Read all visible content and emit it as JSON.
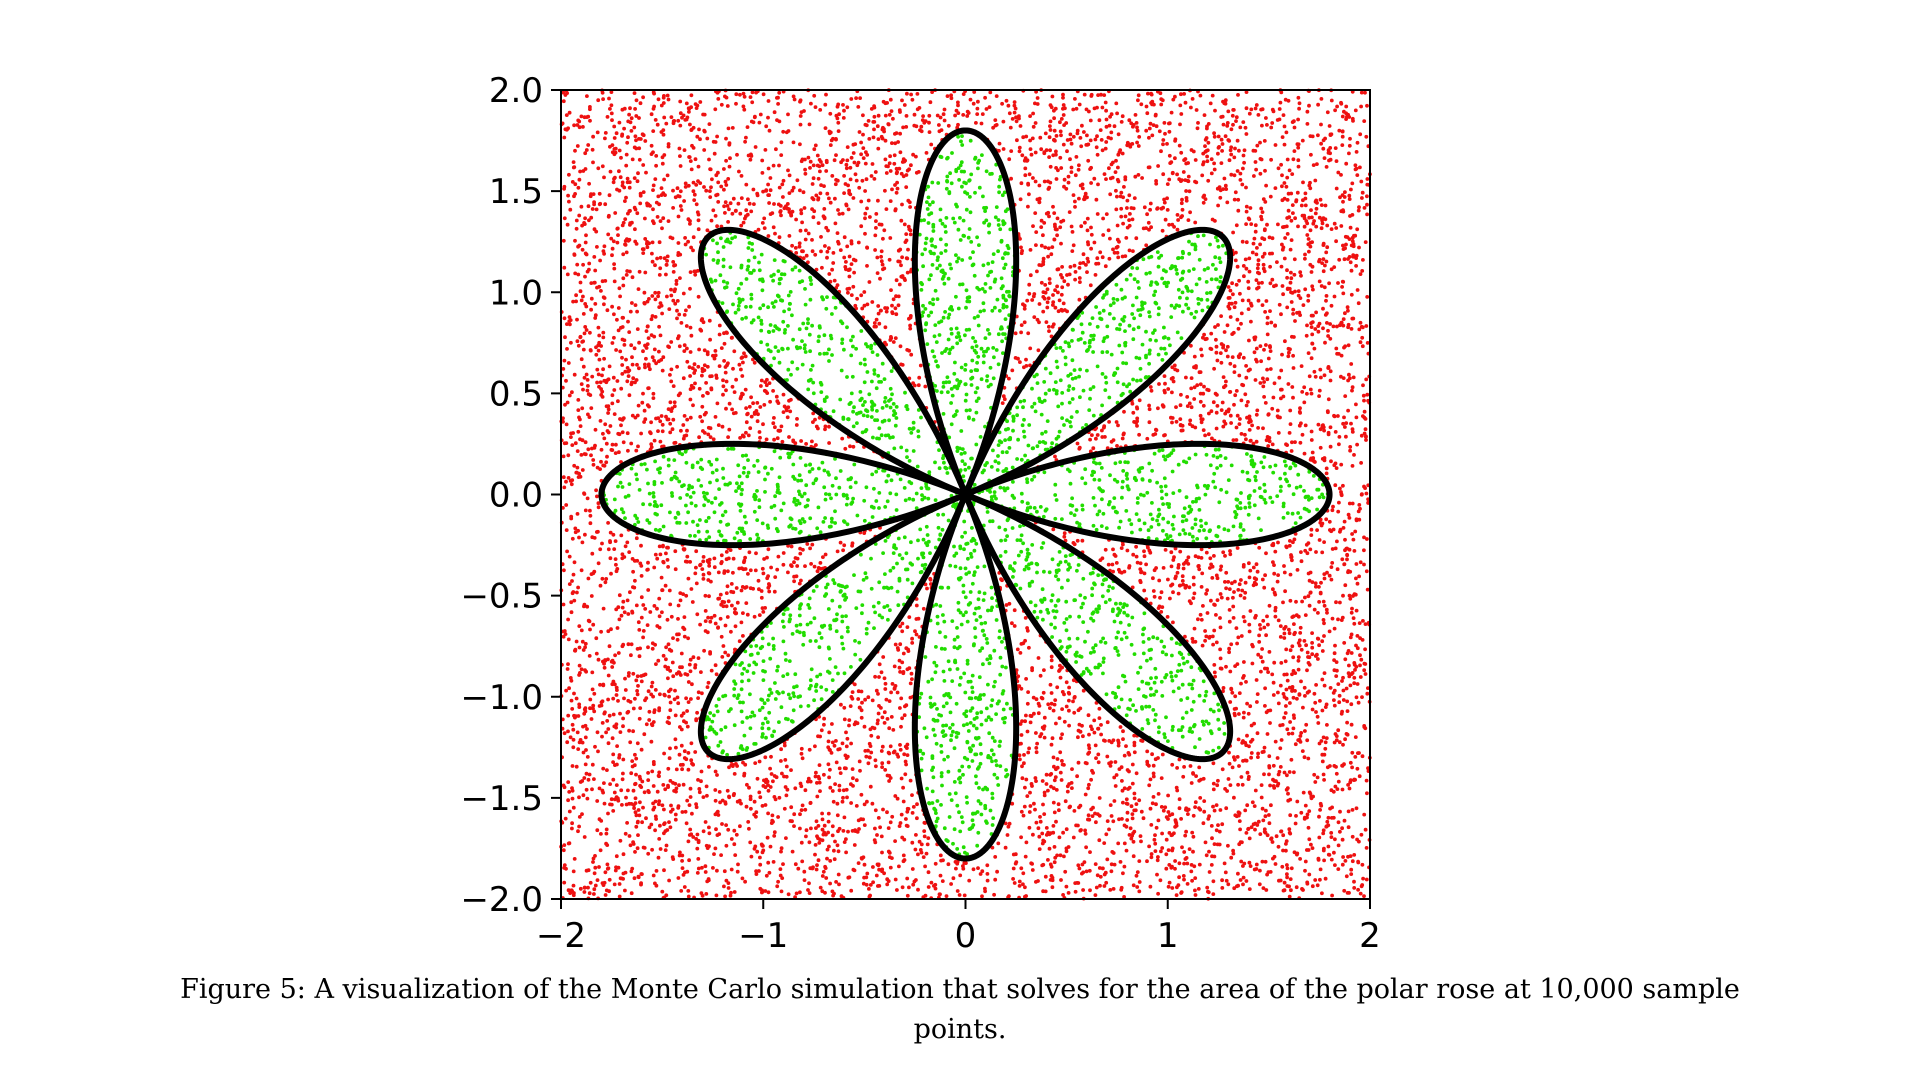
{
  "figure": {
    "caption": "Figure 5: A visualization of the Monte Carlo simulation that solves for the area of the polar rose at 10,000 sample points."
  },
  "chart_data": {
    "type": "scatter",
    "title": "",
    "xlabel": "",
    "ylabel": "",
    "xlim": [
      -2,
      2
    ],
    "ylim": [
      -2,
      2
    ],
    "x_ticks": [
      -2,
      -1,
      0,
      1,
      2
    ],
    "x_tick_labels": [
      "−2",
      "−1",
      "0",
      "1",
      "2"
    ],
    "y_ticks": [
      2.0,
      1.5,
      1.0,
      0.5,
      0.0,
      -0.5,
      -1.0,
      -1.5,
      -2.0
    ],
    "y_tick_labels": [
      "2.0",
      "1.5",
      "1.0",
      "0.5",
      "0.0",
      "−0.5",
      "−1.0",
      "−1.5",
      "−2.0"
    ],
    "grid": false,
    "aspect": "equal",
    "sample_count": 10000,
    "curve": {
      "kind": "polar rose",
      "equation": "r = 1.8·cos(4θ)",
      "petals": 8,
      "amplitude": 1.8,
      "color": "#000000"
    },
    "series": [
      {
        "role": "inside",
        "color": "#22dd00"
      },
      {
        "role": "outside",
        "color": "#ee1111"
      }
    ]
  }
}
